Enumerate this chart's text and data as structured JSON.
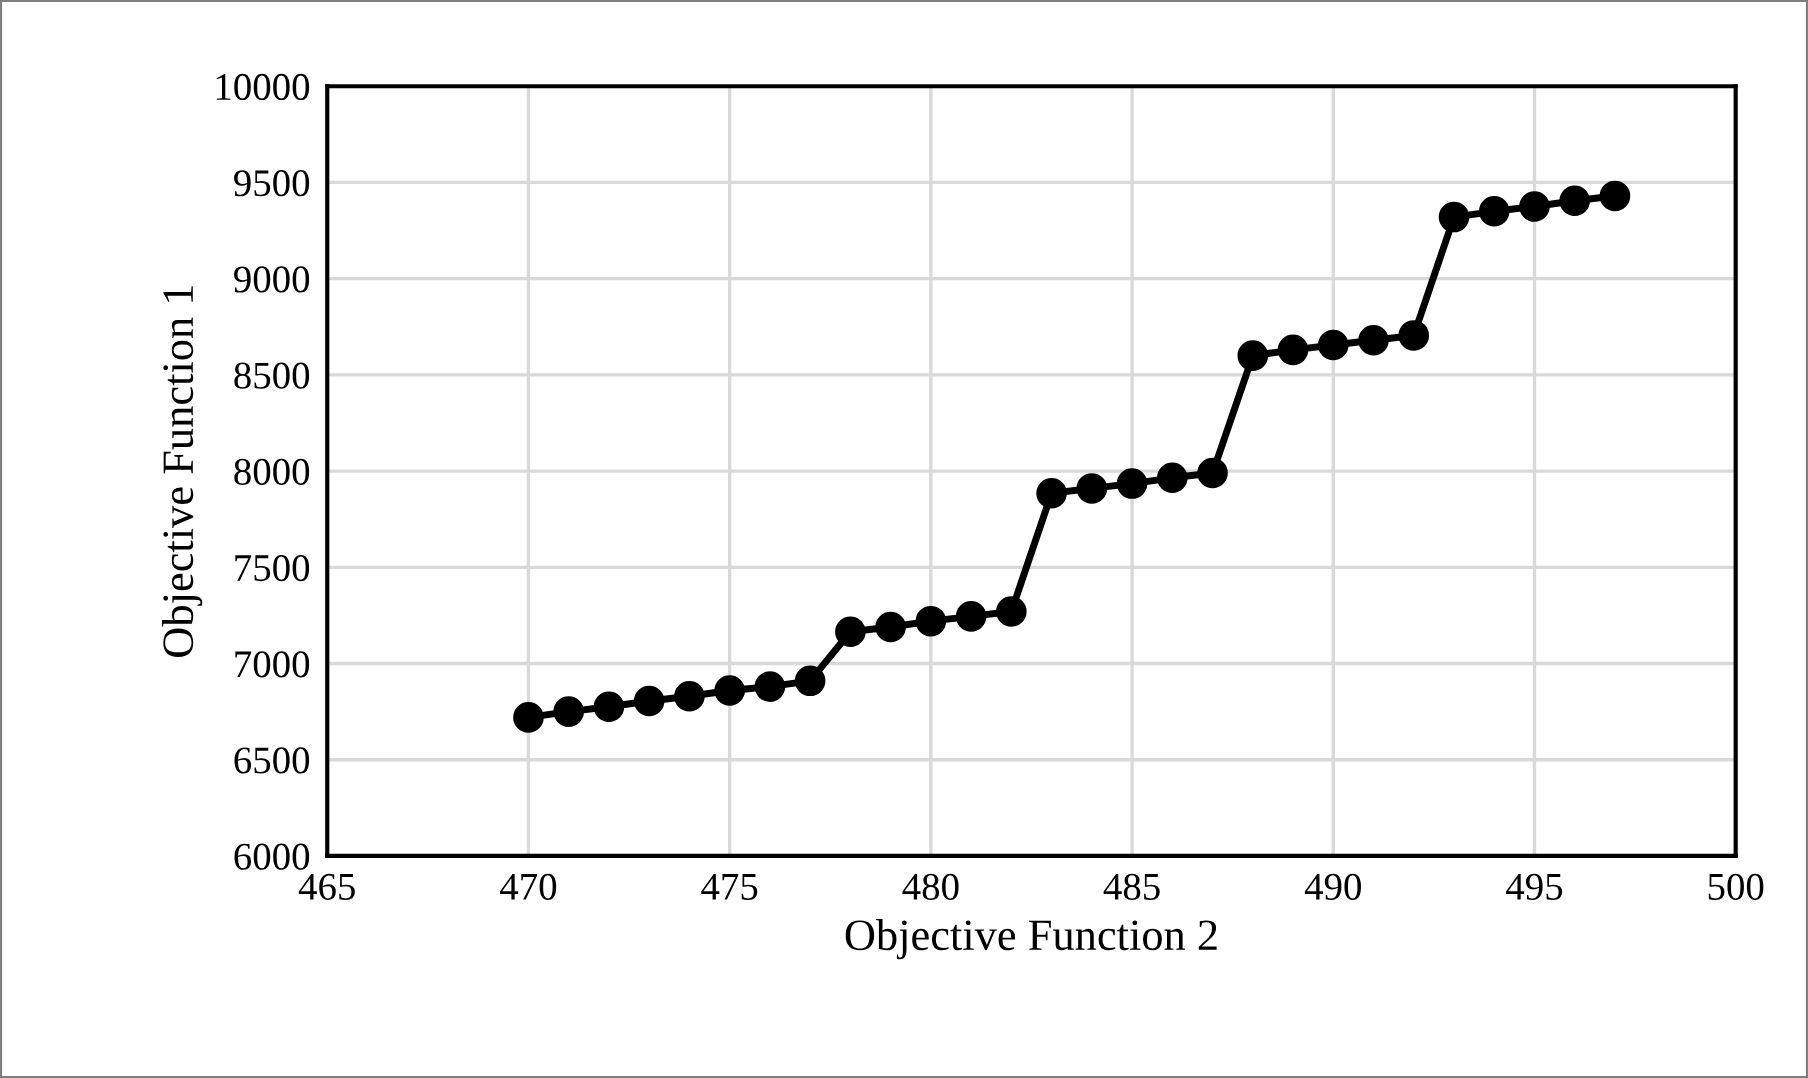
{
  "chart_data": {
    "type": "line",
    "xlabel": "Objective Function 2",
    "ylabel": "Objective Function 1",
    "x": [
      470,
      471,
      472,
      473,
      474,
      475,
      476,
      477,
      478,
      479,
      480,
      481,
      482,
      483,
      484,
      485,
      486,
      487,
      488,
      489,
      490,
      491,
      492,
      493,
      494,
      495,
      496,
      497
    ],
    "series": [
      {
        "color": "#000000",
        "values": [
          6720,
          6750,
          6775,
          6805,
          6830,
          6860,
          6880,
          6910,
          7165,
          7190,
          7220,
          7245,
          7270,
          7885,
          7910,
          7935,
          7965,
          7990,
          8600,
          8630,
          8655,
          8680,
          8705,
          9320,
          9350,
          9375,
          9405,
          9430
        ]
      }
    ],
    "xlim": [
      465,
      500
    ],
    "xticks": [
      465,
      470,
      475,
      480,
      485,
      490,
      495,
      500
    ],
    "ylim": [
      6000,
      10000
    ],
    "yticks": [
      6000,
      6500,
      7000,
      7500,
      8000,
      8500,
      9000,
      9500,
      10000
    ],
    "grid": true,
    "marker": "circle",
    "line_style": "solid"
  }
}
